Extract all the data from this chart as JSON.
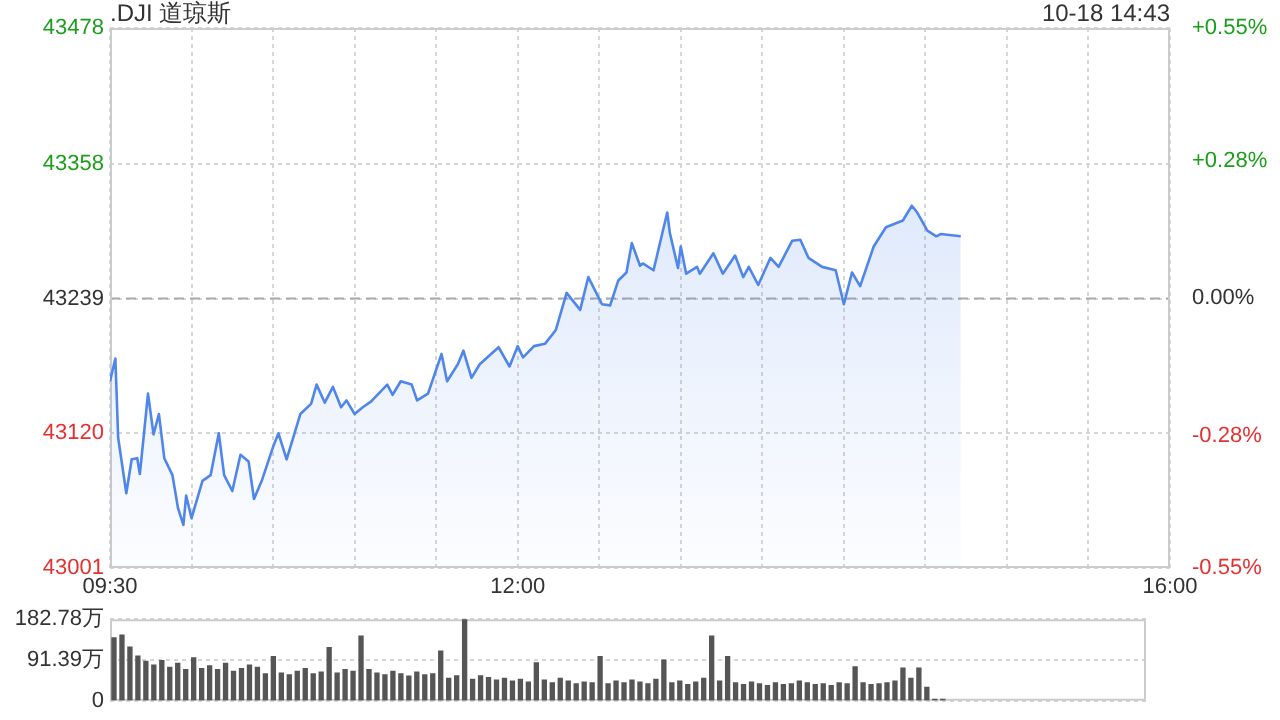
{
  "chart_data": [
    {
      "type": "area",
      "title": ".DJI 道琼斯",
      "annotations": [
        "10-18 14:43"
      ],
      "x": [
        9.5,
        9.533,
        9.55,
        9.6,
        9.633,
        9.667,
        9.683,
        9.717,
        9.733,
        9.767,
        9.8,
        9.833,
        9.883,
        9.917,
        9.95,
        9.967,
        10,
        10.067,
        10.117,
        10.167,
        10.2,
        10.25,
        10.3,
        10.35,
        10.383,
        10.433,
        10.5,
        10.533,
        10.583,
        10.667,
        10.733,
        10.767,
        10.817,
        10.867,
        10.917,
        10.95,
        11,
        11.05,
        11.1,
        11.2,
        11.233,
        11.283,
        11.35,
        11.383,
        11.45,
        11.533,
        11.567,
        11.633,
        11.667,
        11.717,
        11.767,
        11.883,
        11.95,
        12,
        12.033,
        12.1,
        12.167,
        12.233,
        12.3,
        12.383,
        12.433,
        12.517,
        12.567,
        12.617,
        12.667,
        12.7,
        12.75,
        12.767,
        12.833,
        12.917,
        12.933,
        12.983,
        13,
        13.033,
        13.1,
        13.117,
        13.2,
        13.258,
        13.333,
        13.383,
        13.417,
        13.475,
        13.55,
        13.6,
        13.683,
        13.733,
        13.783,
        13.867,
        13.95,
        14,
        14.05,
        14.1,
        14.183,
        14.258,
        14.362,
        14.417,
        14.45,
        14.512,
        14.567,
        14.593,
        14.717
      ],
      "series": [
        {
          "color": "#4f86ec",
          "values": [
            43166,
            43186,
            43116,
            43067,
            43097,
            43098,
            43084,
            43132,
            43155,
            43119,
            43137,
            43098,
            43083,
            43054,
            43039,
            43065,
            43045,
            43078,
            43083,
            43120,
            43083,
            43069,
            43101,
            43095,
            43062,
            43079,
            43108,
            43120,
            43097,
            43137,
            43146,
            43163,
            43147,
            43161,
            43143,
            43149,
            43137,
            43143,
            43148,
            43163,
            43154,
            43166,
            43163,
            43149,
            43155,
            43190,
            43166,
            43181,
            43193,
            43169,
            43181,
            43196,
            43179,
            43197,
            43187,
            43197,
            43199,
            43211,
            43244,
            43229,
            43258,
            43234,
            43233,
            43255,
            43262,
            43288,
            43268,
            43270,
            43264,
            43315,
            43297,
            43266,
            43285,
            43261,
            43267,
            43261,
            43279,
            43261,
            43277,
            43258,
            43267,
            43251,
            43275,
            43267,
            43290,
            43291,
            43275,
            43267,
            43264,
            43234,
            43262,
            43250,
            43285,
            43302,
            43308,
            43321,
            43315,
            43299,
            43294,
            43296,
            43294
          ]
        }
      ],
      "xlim": [
        9.5,
        16
      ],
      "xticks": [
        {
          "value": 9.5,
          "label": "09:30"
        },
        {
          "value": 10,
          "label": null
        },
        {
          "value": 10.5,
          "label": null
        },
        {
          "value": 11,
          "label": null
        },
        {
          "value": 11.5,
          "label": null
        },
        {
          "value": 12,
          "label": "12:00"
        },
        {
          "value": 12.5,
          "label": null
        },
        {
          "value": 13,
          "label": null
        },
        {
          "value": 13.5,
          "label": null
        },
        {
          "value": 14,
          "label": null
        },
        {
          "value": 14.5,
          "label": null
        },
        {
          "value": 15,
          "label": null
        },
        {
          "value": 15.5,
          "label": null
        },
        {
          "value": 16,
          "label": "16:00"
        }
      ],
      "ylim": [
        43001,
        43478
      ],
      "yticks": [
        43001,
        43120,
        43239,
        43358,
        43478
      ],
      "y2lim": [
        -0.55,
        0.55
      ],
      "y2ticks": [
        {
          "value": -0.55,
          "label": "-0.55%"
        },
        {
          "value": -0.28,
          "label": "-0.28%"
        },
        {
          "value": 0,
          "label": "0.00%"
        },
        {
          "value": 0.28,
          "label": "+0.28%"
        },
        {
          "value": 0.55,
          "label": "+0.55%"
        }
      ],
      "ref_lines": [
        {
          "axis": "y",
          "value": 43239,
          "color": "#aaaaaa",
          "line_style": "dashed"
        }
      ],
      "grid": true,
      "legend": false,
      "marker": "none",
      "line_style": "solid"
    },
    {
      "type": "bar",
      "categories": [
        null,
        null,
        null,
        null,
        null,
        null,
        null,
        null,
        null,
        null,
        null,
        null,
        null,
        null,
        null,
        null,
        null,
        null,
        null,
        null,
        null,
        null,
        null,
        null,
        null,
        null,
        null,
        null,
        null,
        null,
        null,
        null,
        null,
        null,
        null,
        null,
        null,
        null,
        null,
        null,
        null,
        null,
        null,
        null,
        null,
        null,
        null,
        null,
        null,
        null,
        null,
        null,
        null,
        null,
        null,
        null,
        null,
        null,
        null,
        null,
        null,
        null,
        null,
        null,
        null,
        null,
        null,
        null,
        null,
        null,
        null,
        null,
        null,
        null,
        null,
        null,
        null,
        null,
        null,
        null,
        null,
        null,
        null,
        null,
        null,
        null,
        null,
        null,
        null,
        null,
        null,
        null,
        null,
        null,
        null,
        null,
        null,
        null,
        null,
        null,
        null,
        null,
        null,
        null,
        null,
        null,
        null,
        null,
        null,
        null,
        null,
        null,
        null,
        null,
        null,
        null,
        null,
        null,
        null,
        null,
        null,
        null,
        null,
        null,
        null,
        null,
        null,
        null,
        null,
        null
      ],
      "series": [
        {
          "color": "#555555",
          "values": [
            141,
            147,
            120,
            100,
            88,
            80,
            90,
            75,
            84,
            70,
            96,
            72,
            78,
            70,
            84,
            66,
            72,
            80,
            75,
            60,
            99,
            62,
            58,
            66,
            72,
            60,
            64,
            119,
            62,
            70,
            66,
            145,
            70,
            62,
            58,
            66,
            60,
            55,
            64,
            58,
            60,
            111,
            50,
            56,
            182,
            48,
            56,
            52,
            46,
            50,
            44,
            48,
            42,
            85,
            46,
            40,
            50,
            44,
            38,
            42,
            40,
            99,
            38,
            44,
            40,
            46,
            42,
            38,
            48,
            91,
            40,
            44,
            36,
            42,
            50,
            145,
            44,
            99,
            40,
            36,
            42,
            38,
            34,
            40,
            36,
            38,
            44,
            40,
            36,
            38,
            34,
            40,
            38,
            76,
            40,
            36,
            38,
            40,
            44,
            73,
            50,
            73,
            30,
            3,
            3,
            null,
            null,
            null,
            null,
            null,
            null,
            null,
            null,
            null,
            null,
            null,
            null,
            null,
            null,
            null,
            null,
            null,
            null,
            null,
            null,
            null,
            null,
            null,
            null,
            null
          ]
        }
      ],
      "ylim": [
        0,
        182.78
      ],
      "yticks": [
        0,
        {
          "value": 91.39,
          "label": "91.39万"
        },
        {
          "value": 182.78,
          "label": "182.78万"
        }
      ],
      "grid": "y",
      "legend": false,
      "tick_labels": "y"
    }
  ]
}
